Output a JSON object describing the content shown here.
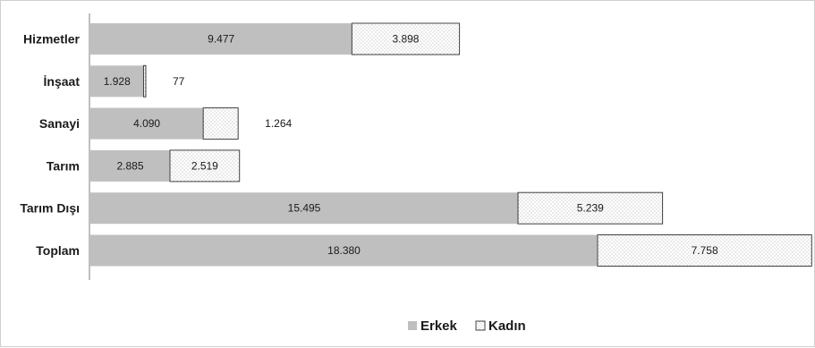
{
  "chart_data": {
    "type": "bar",
    "orientation": "horizontal",
    "stacked": true,
    "categories": [
      "Hizmetler",
      "İnşaat",
      "Sanayi",
      "Tarım",
      "Tarım Dışı",
      "Toplam"
    ],
    "series": [
      {
        "name": "Erkek",
        "values": [
          9477,
          1928,
          4090,
          2885,
          15495,
          18380
        ],
        "labels": [
          "9.477",
          "1.928",
          "4.090",
          "2.885",
          "15.495",
          "18.380"
        ],
        "color": "#bfbfbf",
        "pattern": "solid"
      },
      {
        "name": "Kadın",
        "values": [
          3898,
          77,
          1264,
          2519,
          5239,
          7758
        ],
        "labels": [
          "3.898",
          "77",
          "1.264",
          "2.519",
          "5.239",
          "7.758"
        ],
        "color": "#ffffff",
        "pattern": "dotted"
      }
    ],
    "xlim": [
      0,
      26500
    ],
    "legend_position": "bottom-center",
    "grid": false,
    "title": "",
    "xlabel": "",
    "ylabel": ""
  }
}
